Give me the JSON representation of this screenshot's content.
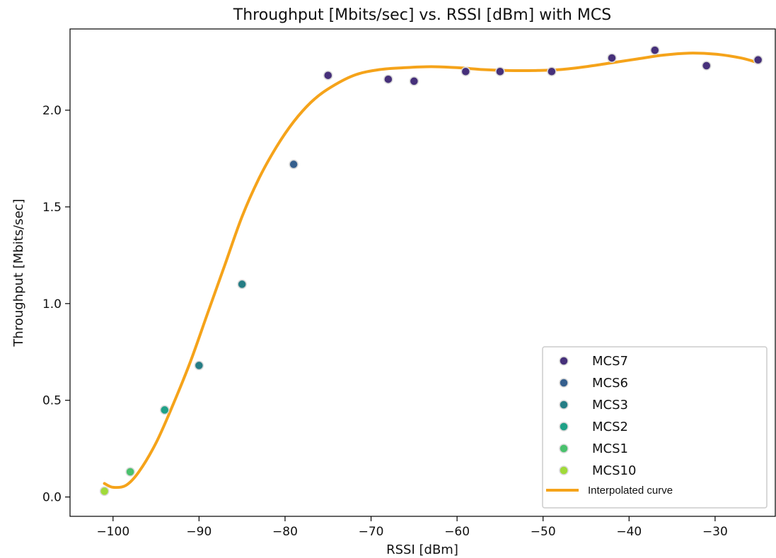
{
  "chart_data": {
    "type": "scatter",
    "title": "Throughput [Mbits/sec] vs. RSSI [dBm] with MCS",
    "xlabel": "RSSI [dBm]",
    "ylabel": "Throughput [Mbits/sec]",
    "xlim": [
      -105,
      -23
    ],
    "ylim": [
      -0.1,
      2.42
    ],
    "xticks": [
      -100,
      -90,
      -80,
      -70,
      -60,
      -50,
      -40,
      -30
    ],
    "xtick_labels": [
      "−100",
      "−90",
      "−80",
      "−70",
      "−60",
      "−50",
      "−40",
      "−30"
    ],
    "yticks": [
      0.0,
      0.5,
      1.0,
      1.5,
      2.0
    ],
    "ytick_labels": [
      "0.0",
      "0.5",
      "1.0",
      "1.5",
      "2.0"
    ],
    "grid": false,
    "legend_position": "bottom-right",
    "series": [
      {
        "name": "MCS7",
        "color": "#46307a",
        "points": [
          [
            -75,
            2.18
          ],
          [
            -68,
            2.16
          ],
          [
            -65,
            2.15
          ],
          [
            -59,
            2.2
          ],
          [
            -55,
            2.2
          ],
          [
            -49,
            2.2
          ],
          [
            -42,
            2.27
          ],
          [
            -37,
            2.31
          ],
          [
            -31,
            2.23
          ],
          [
            -25,
            2.26
          ]
        ]
      },
      {
        "name": "MCS6",
        "color": "#355f8d",
        "points": [
          [
            -79,
            1.72
          ]
        ]
      },
      {
        "name": "MCS3",
        "color": "#257d85",
        "points": [
          [
            -85,
            1.1
          ],
          [
            -90,
            0.68
          ]
        ]
      },
      {
        "name": "MCS2",
        "color": "#1fa187",
        "points": [
          [
            -94,
            0.45
          ]
        ]
      },
      {
        "name": "MCS1",
        "color": "#4ac16d",
        "points": [
          [
            -98,
            0.13
          ]
        ]
      },
      {
        "name": "MCS10",
        "color": "#a0da39",
        "points": [
          [
            -101,
            0.03
          ]
        ]
      }
    ],
    "curve": {
      "name": "Interpolated curve",
      "color": "#f5a31a",
      "points": [
        [
          -101,
          0.07
        ],
        [
          -100,
          0.05
        ],
        [
          -98.5,
          0.06
        ],
        [
          -97,
          0.13
        ],
        [
          -95,
          0.28
        ],
        [
          -93,
          0.48
        ],
        [
          -91,
          0.7
        ],
        [
          -89,
          0.95
        ],
        [
          -87,
          1.2
        ],
        [
          -85,
          1.45
        ],
        [
          -83,
          1.65
        ],
        [
          -81,
          1.81
        ],
        [
          -79,
          1.94
        ],
        [
          -77,
          2.04
        ],
        [
          -75,
          2.11
        ],
        [
          -72,
          2.18
        ],
        [
          -69,
          2.21
        ],
        [
          -66,
          2.22
        ],
        [
          -63,
          2.225
        ],
        [
          -60,
          2.22
        ],
        [
          -57,
          2.21
        ],
        [
          -54,
          2.205
        ],
        [
          -51,
          2.205
        ],
        [
          -48,
          2.21
        ],
        [
          -45,
          2.225
        ],
        [
          -42,
          2.245
        ],
        [
          -39,
          2.265
        ],
        [
          -36,
          2.285
        ],
        [
          -33,
          2.295
        ],
        [
          -30,
          2.29
        ],
        [
          -27,
          2.27
        ],
        [
          -25,
          2.245
        ]
      ]
    }
  }
}
